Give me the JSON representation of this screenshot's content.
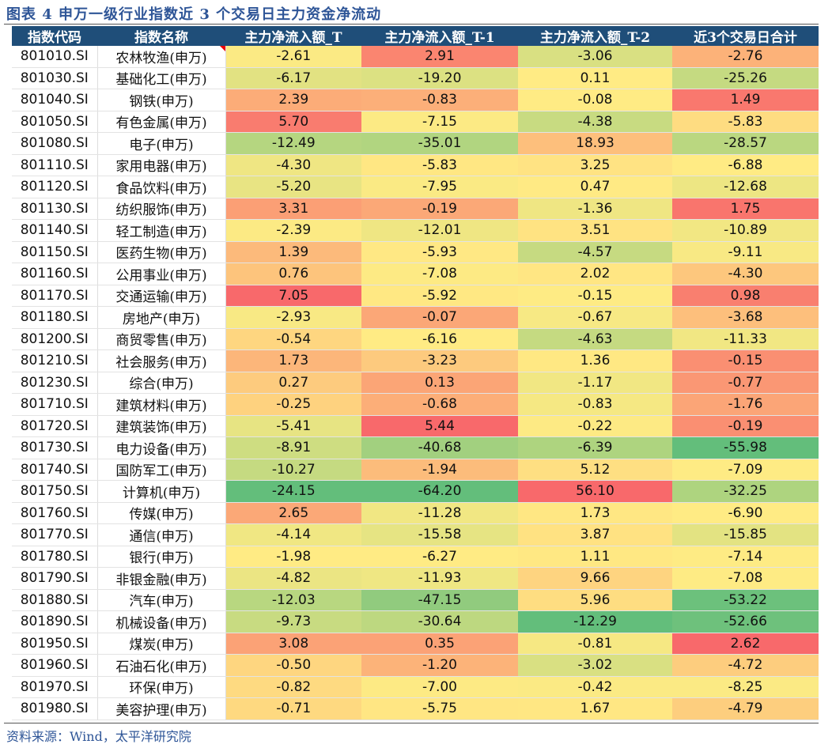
{
  "title": "图表 4  申万一级行业指数近 3 个交易日主力资金净流动",
  "headers": [
    "指数代码",
    "指数名称",
    "主力净流入额_T",
    "主力净流入额_T-1",
    "主力净流入额_T-2",
    "近3个交易日合计"
  ],
  "rows": [
    [
      "801010.SI",
      "农林牧渔(申万)",
      "-2.61",
      "2.91",
      "-3.06",
      "-2.76"
    ],
    [
      "801030.SI",
      "基础化工(申万)",
      "-6.17",
      "-19.20",
      "0.11",
      "-25.26"
    ],
    [
      "801040.SI",
      "钢铁(申万)",
      "2.39",
      "-0.83",
      "-0.08",
      "1.49"
    ],
    [
      "801050.SI",
      "有色金属(申万)",
      "5.70",
      "-7.15",
      "-4.38",
      "-5.83"
    ],
    [
      "801080.SI",
      "电子(申万)",
      "-12.49",
      "-35.01",
      "18.93",
      "-28.57"
    ],
    [
      "801110.SI",
      "家用电器(申万)",
      "-4.30",
      "-5.83",
      "3.25",
      "-6.88"
    ],
    [
      "801120.SI",
      "食品饮料(申万)",
      "-5.20",
      "-7.95",
      "0.47",
      "-12.68"
    ],
    [
      "801130.SI",
      "纺织服饰(申万)",
      "3.31",
      "-0.19",
      "-1.36",
      "1.75"
    ],
    [
      "801140.SI",
      "轻工制造(申万)",
      "-2.39",
      "-12.01",
      "3.51",
      "-10.89"
    ],
    [
      "801150.SI",
      "医药生物(申万)",
      "1.39",
      "-5.93",
      "-4.57",
      "-9.11"
    ],
    [
      "801160.SI",
      "公用事业(申万)",
      "0.76",
      "-7.08",
      "2.02",
      "-4.30"
    ],
    [
      "801170.SI",
      "交通运输(申万)",
      "7.05",
      "-5.92",
      "-0.15",
      "0.98"
    ],
    [
      "801180.SI",
      "房地产(申万)",
      "-2.93",
      "-0.07",
      "-0.67",
      "-3.68"
    ],
    [
      "801200.SI",
      "商贸零售(申万)",
      "-0.54",
      "-6.16",
      "-4.63",
      "-11.33"
    ],
    [
      "801210.SI",
      "社会服务(申万)",
      "1.73",
      "-3.23",
      "1.36",
      "-0.15"
    ],
    [
      "801230.SI",
      "综合(申万)",
      "0.27",
      "0.13",
      "-1.17",
      "-0.77"
    ],
    [
      "801710.SI",
      "建筑材料(申万)",
      "-0.25",
      "-0.68",
      "-0.83",
      "-1.76"
    ],
    [
      "801720.SI",
      "建筑装饰(申万)",
      "-5.41",
      "5.44",
      "-0.22",
      "-0.19"
    ],
    [
      "801730.SI",
      "电力设备(申万)",
      "-8.91",
      "-40.68",
      "-6.39",
      "-55.98"
    ],
    [
      "801740.SI",
      "国防军工(申万)",
      "-10.27",
      "-1.94",
      "5.12",
      "-7.09"
    ],
    [
      "801750.SI",
      "计算机(申万)",
      "-24.15",
      "-64.20",
      "56.10",
      "-32.25"
    ],
    [
      "801760.SI",
      "传媒(申万)",
      "2.65",
      "-11.28",
      "1.73",
      "-6.90"
    ],
    [
      "801770.SI",
      "通信(申万)",
      "-4.14",
      "-15.58",
      "3.87",
      "-15.85"
    ],
    [
      "801780.SI",
      "银行(申万)",
      "-1.98",
      "-6.27",
      "1.11",
      "-7.14"
    ],
    [
      "801790.SI",
      "非银金融(申万)",
      "-4.82",
      "-11.93",
      "9.66",
      "-7.08"
    ],
    [
      "801880.SI",
      "汽车(申万)",
      "-12.03",
      "-47.15",
      "5.96",
      "-53.22"
    ],
    [
      "801890.SI",
      "机械设备(申万)",
      "-9.73",
      "-30.64",
      "-12.29",
      "-52.66"
    ],
    [
      "801950.SI",
      "煤炭(申万)",
      "3.08",
      "0.35",
      "-0.81",
      "2.62"
    ],
    [
      "801960.SI",
      "石油石化(申万)",
      "-0.50",
      "-1.20",
      "-3.02",
      "-4.72"
    ],
    [
      "801970.SI",
      "环保(申万)",
      "-0.82",
      "-7.00",
      "-0.42",
      "-8.25"
    ],
    [
      "801980.SI",
      "美容护理(申万)",
      "-0.71",
      "-5.75",
      "1.67",
      "-4.79"
    ]
  ],
  "source": "资料来源：Wind，太平洋研究院",
  "colors": {
    "header": "#1F4E79",
    "high": "#F8696B",
    "mid": "#FFEB84",
    "low": "#63BE7B"
  }
}
